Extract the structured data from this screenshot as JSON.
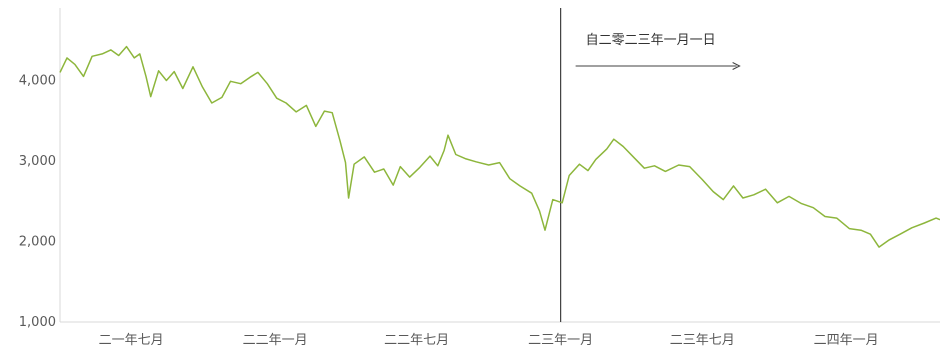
{
  "chart_data": {
    "type": "line",
    "series": [
      {
        "color": "#8DB63C",
        "points": [
          [
            "2021-04-01",
            4100
          ],
          [
            "2021-04-10",
            4280
          ],
          [
            "2021-04-20",
            4200
          ],
          [
            "2021-05-01",
            4050
          ],
          [
            "2021-05-12",
            4300
          ],
          [
            "2021-05-25",
            4330
          ],
          [
            "2021-06-05",
            4380
          ],
          [
            "2021-06-15",
            4310
          ],
          [
            "2021-06-25",
            4420
          ],
          [
            "2021-07-05",
            4280
          ],
          [
            "2021-07-12",
            4330
          ],
          [
            "2021-07-20",
            4050
          ],
          [
            "2021-07-26",
            3800
          ],
          [
            "2021-08-05",
            4120
          ],
          [
            "2021-08-15",
            4000
          ],
          [
            "2021-08-25",
            4110
          ],
          [
            "2021-09-05",
            3900
          ],
          [
            "2021-09-18",
            4170
          ],
          [
            "2021-09-30",
            3920
          ],
          [
            "2021-10-12",
            3720
          ],
          [
            "2021-10-25",
            3790
          ],
          [
            "2021-11-05",
            3990
          ],
          [
            "2021-11-18",
            3960
          ],
          [
            "2021-11-30",
            4040
          ],
          [
            "2021-12-10",
            4100
          ],
          [
            "2021-12-22",
            3960
          ],
          [
            "2022-01-03",
            3780
          ],
          [
            "2022-01-15",
            3720
          ],
          [
            "2022-01-28",
            3610
          ],
          [
            "2022-02-10",
            3690
          ],
          [
            "2022-02-22",
            3430
          ],
          [
            "2022-03-05",
            3620
          ],
          [
            "2022-03-15",
            3600
          ],
          [
            "2022-03-25",
            3250
          ],
          [
            "2022-04-01",
            2980
          ],
          [
            "2022-04-05",
            2540
          ],
          [
            "2022-04-12",
            2960
          ],
          [
            "2022-04-25",
            3050
          ],
          [
            "2022-05-08",
            2860
          ],
          [
            "2022-05-20",
            2900
          ],
          [
            "2022-06-01",
            2700
          ],
          [
            "2022-06-10",
            2930
          ],
          [
            "2022-06-22",
            2800
          ],
          [
            "2022-07-05",
            2920
          ],
          [
            "2022-07-18",
            3060
          ],
          [
            "2022-07-28",
            2940
          ],
          [
            "2022-08-05",
            3130
          ],
          [
            "2022-08-10",
            3320
          ],
          [
            "2022-08-20",
            3080
          ],
          [
            "2022-09-01",
            3030
          ],
          [
            "2022-09-15",
            2990
          ],
          [
            "2022-10-01",
            2950
          ],
          [
            "2022-10-15",
            2980
          ],
          [
            "2022-10-28",
            2780
          ],
          [
            "2022-11-10",
            2690
          ],
          [
            "2022-11-25",
            2600
          ],
          [
            "2022-12-05",
            2380
          ],
          [
            "2022-12-12",
            2140
          ],
          [
            "2022-12-22",
            2520
          ],
          [
            "2023-01-03",
            2480
          ],
          [
            "2023-01-12",
            2820
          ],
          [
            "2023-01-25",
            2960
          ],
          [
            "2023-02-05",
            2880
          ],
          [
            "2023-02-15",
            3020
          ],
          [
            "2023-03-01",
            3150
          ],
          [
            "2023-03-10",
            3270
          ],
          [
            "2023-03-22",
            3180
          ],
          [
            "2023-04-05",
            3040
          ],
          [
            "2023-04-18",
            2910
          ],
          [
            "2023-05-01",
            2940
          ],
          [
            "2023-05-15",
            2870
          ],
          [
            "2023-06-01",
            2950
          ],
          [
            "2023-06-15",
            2930
          ],
          [
            "2023-07-01",
            2770
          ],
          [
            "2023-07-15",
            2620
          ],
          [
            "2023-07-28",
            2520
          ],
          [
            "2023-08-10",
            2690
          ],
          [
            "2023-08-22",
            2540
          ],
          [
            "2023-09-05",
            2580
          ],
          [
            "2023-09-20",
            2650
          ],
          [
            "2023-10-05",
            2480
          ],
          [
            "2023-10-20",
            2560
          ],
          [
            "2023-11-05",
            2470
          ],
          [
            "2023-11-20",
            2420
          ],
          [
            "2023-12-05",
            2310
          ],
          [
            "2023-12-20",
            2290
          ],
          [
            "2024-01-05",
            2160
          ],
          [
            "2024-01-20",
            2140
          ],
          [
            "2024-02-01",
            2090
          ],
          [
            "2024-02-12",
            1930
          ],
          [
            "2024-02-25",
            2020
          ],
          [
            "2024-03-10",
            2090
          ],
          [
            "2024-03-25",
            2170
          ],
          [
            "2024-04-10",
            2230
          ],
          [
            "2024-04-25",
            2290
          ],
          [
            "2024-04-30",
            2270
          ]
        ]
      }
    ],
    "x_range": [
      "2021-04-01",
      "2024-04-30"
    ],
    "ylim": [
      1000,
      4900
    ],
    "yticks": [
      1000,
      2000,
      3000,
      4000
    ],
    "ytick_labels": [
      "1,000",
      "2,000",
      "3,000",
      "4,000"
    ],
    "xticks": [
      "2021-07-01",
      "2022-01-01",
      "2022-07-01",
      "2023-01-01",
      "2023-07-01",
      "2024-01-01"
    ],
    "xtick_labels": [
      "二一年七月",
      "二二年一月",
      "二二年七月",
      "二三年一月",
      "二三年七月",
      "二四年一月"
    ],
    "grid": false,
    "annotation": {
      "date": "2023-01-01",
      "text": "自二零二三年一月一日",
      "line_color": "#404040",
      "arrow_color": "#404040"
    }
  }
}
